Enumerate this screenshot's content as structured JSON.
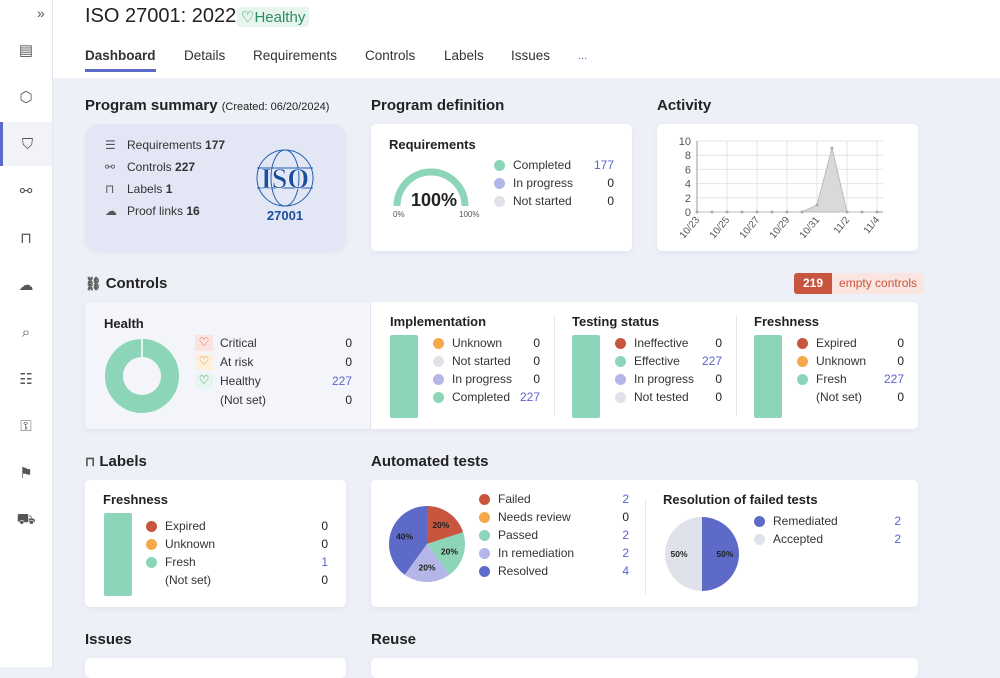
{
  "sidebar": {
    "expand_icon": "»",
    "items": [
      "layout-icon",
      "package-icon",
      "shield-icon",
      "flow-icon",
      "bookmark-icon",
      "cloud-upload-icon",
      "search-doc-icon",
      "clipboard-icon",
      "key-icon",
      "flag-icon",
      "truck-icon"
    ],
    "active": 2
  },
  "header": {
    "title": "ISO 27001: 2022",
    "status": "Healthy",
    "tabs": [
      "Dashboard",
      "Details",
      "Requirements",
      "Controls",
      "Labels",
      "Issues",
      "..."
    ],
    "active_tab": 0
  },
  "colors": {
    "red": "#c8553d",
    "orange": "#f5a94a",
    "green": "#8dd5b8",
    "lavender": "#b3b6e6",
    "blue": "#5e6ac8",
    "grey": "#e0e2ea",
    "accent": "#5e6ac8"
  },
  "summary": {
    "heading": "Program summary",
    "created": "(Created: 06/20/2024)",
    "items": [
      {
        "label": "Requirements",
        "value": "177"
      },
      {
        "label": "Controls",
        "value": "227"
      },
      {
        "label": "Labels",
        "value": "1"
      },
      {
        "label": "Proof links",
        "value": "16"
      }
    ],
    "logo": {
      "text": "ISO",
      "number": "27001",
      "ring": "International Organization for Standardization"
    }
  },
  "definition": {
    "heading": "Program definition",
    "sub": "Requirements",
    "gauge_percent": 100,
    "gauge_label": "100%",
    "min": "0%",
    "max": "100%",
    "legend": [
      {
        "label": "Completed",
        "value": "177",
        "color": "green"
      },
      {
        "label": "In progress",
        "value": "0",
        "color": "lavender"
      },
      {
        "label": "Not started",
        "value": "0",
        "color": "grey"
      }
    ]
  },
  "activity": {
    "heading": "Activity",
    "chart_data": {
      "type": "area",
      "x": [
        "10/23",
        "10/24",
        "10/25",
        "10/26",
        "10/27",
        "10/28",
        "10/29",
        "10/30",
        "10/31",
        "11/1",
        "11/2",
        "11/3",
        "11/4"
      ],
      "values": [
        0,
        0,
        0,
        0,
        0,
        0,
        0,
        0,
        1,
        9,
        0,
        0,
        0
      ],
      "xticks": [
        "10/23",
        "10/25",
        "10/27",
        "10/29",
        "10/31",
        "11/2",
        "11/4"
      ],
      "yticks": [
        "0",
        "2",
        "4",
        "6",
        "8",
        "10"
      ],
      "ylim": [
        0,
        10
      ],
      "grid": true
    }
  },
  "controls": {
    "heading": "Controls",
    "empty_count": "219",
    "empty_label": "empty controls",
    "health": {
      "title": "Health",
      "items": [
        {
          "label": "Critical",
          "value": "0",
          "icon": "heart-broken-icon"
        },
        {
          "label": "At risk",
          "value": "0",
          "icon": "heart-alert-icon"
        },
        {
          "label": "Healthy",
          "value": "227",
          "icon": "heart-pulse-icon"
        },
        {
          "label": "(Not set)",
          "value": "0"
        }
      ]
    },
    "sections": [
      {
        "title": "Implementation",
        "items": [
          {
            "label": "Unknown",
            "value": "0",
            "color": "orange"
          },
          {
            "label": "Not started",
            "value": "0",
            "color": "grey"
          },
          {
            "label": "In progress",
            "value": "0",
            "color": "lavender"
          },
          {
            "label": "Completed",
            "value": "227",
            "color": "green"
          }
        ]
      },
      {
        "title": "Testing status",
        "items": [
          {
            "label": "Ineffective",
            "value": "0",
            "color": "red"
          },
          {
            "label": "Effective",
            "value": "227",
            "color": "green"
          },
          {
            "label": "In progress",
            "value": "0",
            "color": "lavender"
          },
          {
            "label": "Not tested",
            "value": "0",
            "color": "grey"
          }
        ]
      },
      {
        "title": "Freshness",
        "items": [
          {
            "label": "Expired",
            "value": "0",
            "color": "red"
          },
          {
            "label": "Unknown",
            "value": "0",
            "color": "orange"
          },
          {
            "label": "Fresh",
            "value": "227",
            "color": "green"
          },
          {
            "label": "(Not set)",
            "value": "0"
          }
        ]
      }
    ]
  },
  "labels": {
    "heading": "Labels",
    "title": "Freshness",
    "items": [
      {
        "label": "Expired",
        "value": "0",
        "color": "red"
      },
      {
        "label": "Unknown",
        "value": "0",
        "color": "orange"
      },
      {
        "label": "Fresh",
        "value": "1",
        "color": "green"
      },
      {
        "label": "(Not set)",
        "value": "0"
      }
    ]
  },
  "tests": {
    "heading": "Automated tests",
    "chart_data": {
      "type": "pie",
      "slices": [
        {
          "label": "Failed",
          "value": 2,
          "pct": "20%",
          "color": "red"
        },
        {
          "label": "Needs review",
          "value": 0,
          "pct": "",
          "color": "orange"
        },
        {
          "label": "Passed",
          "value": 2,
          "pct": "20%",
          "color": "green"
        },
        {
          "label": "In remediation",
          "value": 2,
          "pct": "20%",
          "color": "lavender"
        },
        {
          "label": "Resolved",
          "value": 4,
          "pct": "40%",
          "color": "blue"
        }
      ]
    },
    "resolution": {
      "title": "Resolution of failed tests",
      "chart_data": {
        "type": "pie",
        "slices": [
          {
            "label": "Remediated",
            "value": 2,
            "pct": "50%",
            "color": "blue"
          },
          {
            "label": "Accepted",
            "value": 2,
            "pct": "50%",
            "color": "grey"
          }
        ]
      }
    }
  },
  "bottom": {
    "issues": "Issues",
    "reuse": "Reuse"
  }
}
